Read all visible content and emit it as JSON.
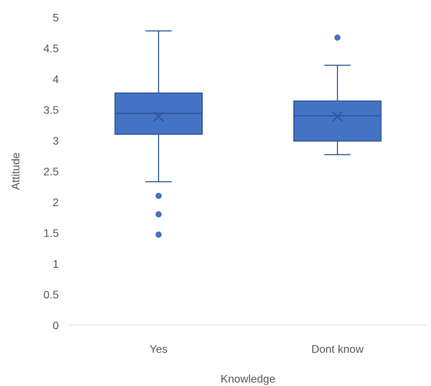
{
  "chart_data": {
    "type": "box",
    "title": "",
    "xlabel": "Knowledge",
    "ylabel": "Attitude",
    "ylim": [
      0,
      5
    ],
    "yticks": [
      "0",
      "0.5",
      "1",
      "1.5",
      "2",
      "2.5",
      "3",
      "3.5",
      "4",
      "4.5",
      "5"
    ],
    "grid": false,
    "legend": "none",
    "colors": {
      "box_fill": "#4472C4",
      "stroke": "#2F5597",
      "axis": "#D9D9D9",
      "text": "#595959"
    },
    "categories": [
      "Yes",
      "Dont know"
    ],
    "boxes": [
      {
        "category": "Yes",
        "whisker_low": 2.33,
        "q1": 3.1,
        "median": 3.44,
        "q3": 3.77,
        "whisker_high": 4.78,
        "mean": 3.39,
        "outliers": [
          2.1,
          1.8,
          1.47
        ]
      },
      {
        "category": "Dont know",
        "whisker_low": 2.77,
        "q1": 2.99,
        "median": 3.4,
        "q3": 3.64,
        "whisker_high": 4.22,
        "mean": 3.39,
        "outliers": [
          4.67
        ]
      }
    ]
  }
}
